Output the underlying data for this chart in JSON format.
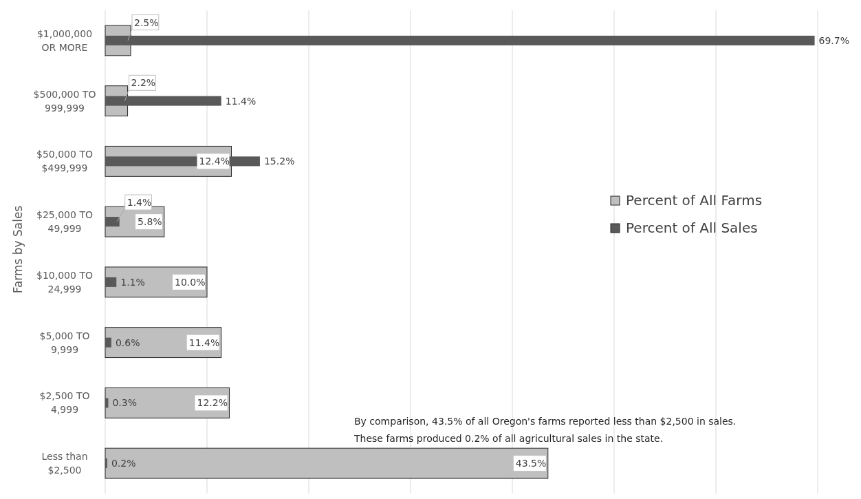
{
  "chart_data": {
    "type": "bar",
    "orientation": "horizontal",
    "ylabel": "Farms by Sales",
    "categories": [
      "$1,000,000\nOR MORE",
      "$500,000 TO\n999,999",
      "$50,000 TO\n$499,999",
      "$25,000 TO\n49,999",
      "$10,000 TO\n24,999",
      "$5,000 TO\n9,999",
      "$2,500 TO\n4,999",
      "Less than\n$2,500"
    ],
    "series": [
      {
        "name": "Percent of All Farms",
        "color": "#bfbfbf",
        "values": [
          2.5,
          2.2,
          12.4,
          5.8,
          10.0,
          11.4,
          12.2,
          43.5
        ],
        "value_labels": [
          "2.5%",
          "2.2%",
          "12.4%",
          "5.8%",
          "10.0%",
          "11.4%",
          "12.2%",
          "43.5%"
        ]
      },
      {
        "name": "Percent of All Sales",
        "color": "#595959",
        "values": [
          69.7,
          11.4,
          15.2,
          1.4,
          1.1,
          0.6,
          0.3,
          0.2
        ],
        "value_labels": [
          "69.7%",
          "11.4%",
          "15.2%",
          "1.4%",
          "1.1%",
          "0.6%",
          "0.3%",
          "0.2%"
        ]
      }
    ],
    "xlim": [
      0,
      70
    ],
    "xticks": [
      {
        "value": 0,
        "label": null
      },
      {
        "value": 10,
        "label": null
      },
      {
        "value": 20,
        "label": null
      },
      {
        "value": 30,
        "label": null
      },
      {
        "value": 40,
        "label": null
      },
      {
        "value": 50,
        "label": null
      },
      {
        "value": 60,
        "label": null
      },
      {
        "value": 70,
        "label": null
      }
    ],
    "tick_labels": "y",
    "grid": "x",
    "legend": "right",
    "annotations": [
      "By comparison, 43.5% of all Oregon's farms reported less than $2,500 in sales.\nThese farms produced 0.2% of all agricultural sales in the state."
    ]
  }
}
